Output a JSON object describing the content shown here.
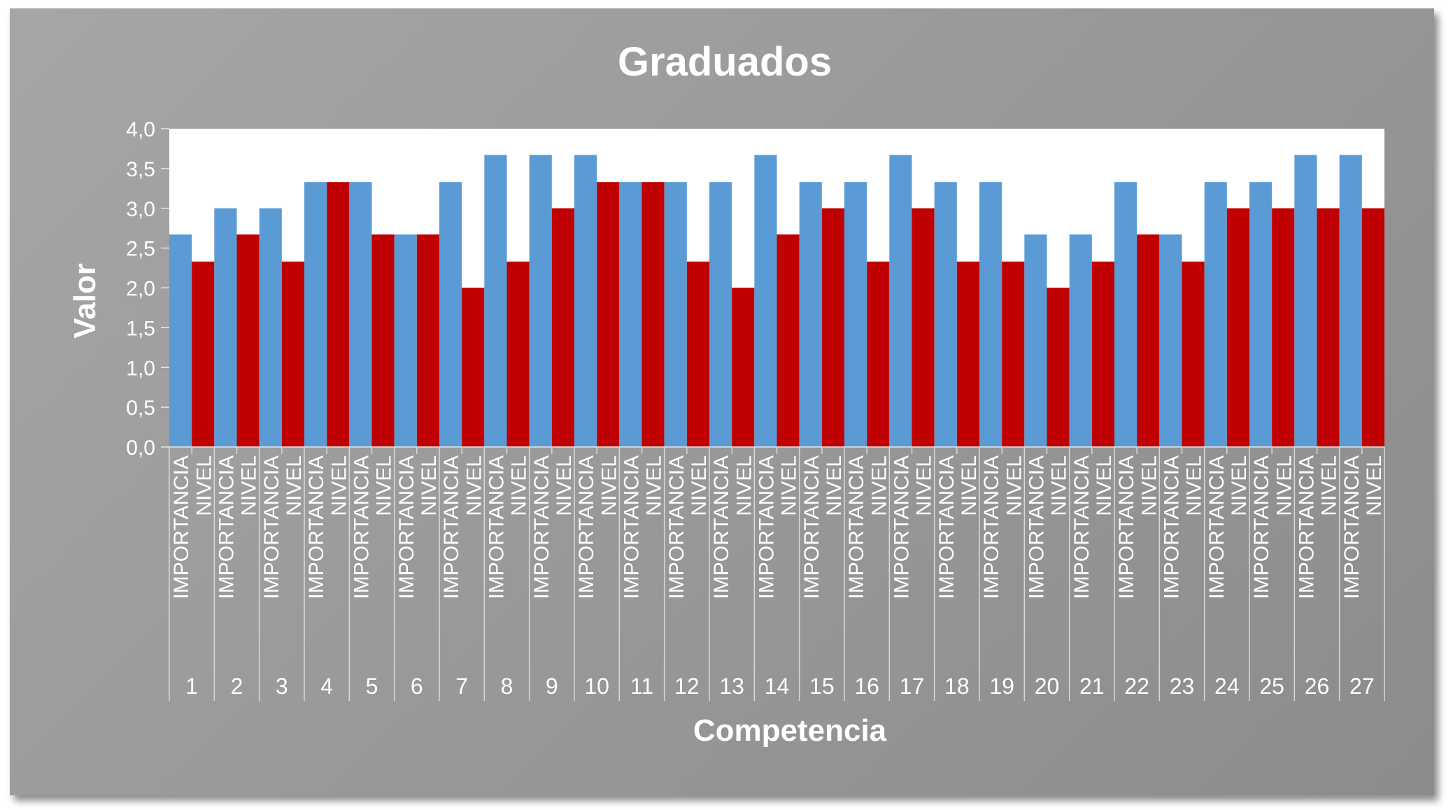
{
  "chart_data": {
    "type": "bar",
    "title": "Graduados",
    "xlabel": "Competencia",
    "ylabel": "Valor",
    "ylim": [
      0,
      4
    ],
    "yticks": [
      "0,0",
      "0,5",
      "1,0",
      "1,5",
      "2,0",
      "2,5",
      "3,0",
      "3,5",
      "4,0"
    ],
    "ytick_values": [
      0,
      0.5,
      1,
      1.5,
      2,
      2.5,
      3,
      3.5,
      4
    ],
    "categories": [
      "1",
      "2",
      "3",
      "4",
      "5",
      "6",
      "7",
      "8",
      "9",
      "10",
      "11",
      "12",
      "13",
      "14",
      "15",
      "16",
      "17",
      "18",
      "19",
      "20",
      "21",
      "22",
      "23",
      "24",
      "25",
      "26",
      "27"
    ],
    "sub_categories": [
      "IMPORTANCIA",
      "NIVEL"
    ],
    "series": [
      {
        "name": "IMPORTANCIA",
        "color": "#5b9bd5",
        "values": [
          2.67,
          3.0,
          3.0,
          3.33,
          3.33,
          2.67,
          3.33,
          3.67,
          3.67,
          3.67,
          3.33,
          3.33,
          3.33,
          3.67,
          3.33,
          3.33,
          3.67,
          3.33,
          3.33,
          2.67,
          2.67,
          3.33,
          2.67,
          3.33,
          3.33,
          3.67,
          3.67
        ]
      },
      {
        "name": "NIVEL",
        "color": "#c00000",
        "values": [
          2.33,
          2.67,
          2.33,
          3.33,
          2.67,
          2.67,
          2.0,
          2.33,
          3.0,
          3.33,
          3.33,
          2.33,
          2.0,
          2.67,
          3.0,
          2.33,
          3.0,
          2.33,
          2.33,
          2.0,
          2.33,
          2.67,
          2.33,
          3.0,
          3.0,
          3.0,
          3.0
        ]
      }
    ],
    "plot_background": "#ffffff",
    "grid": false,
    "legend": "none"
  }
}
